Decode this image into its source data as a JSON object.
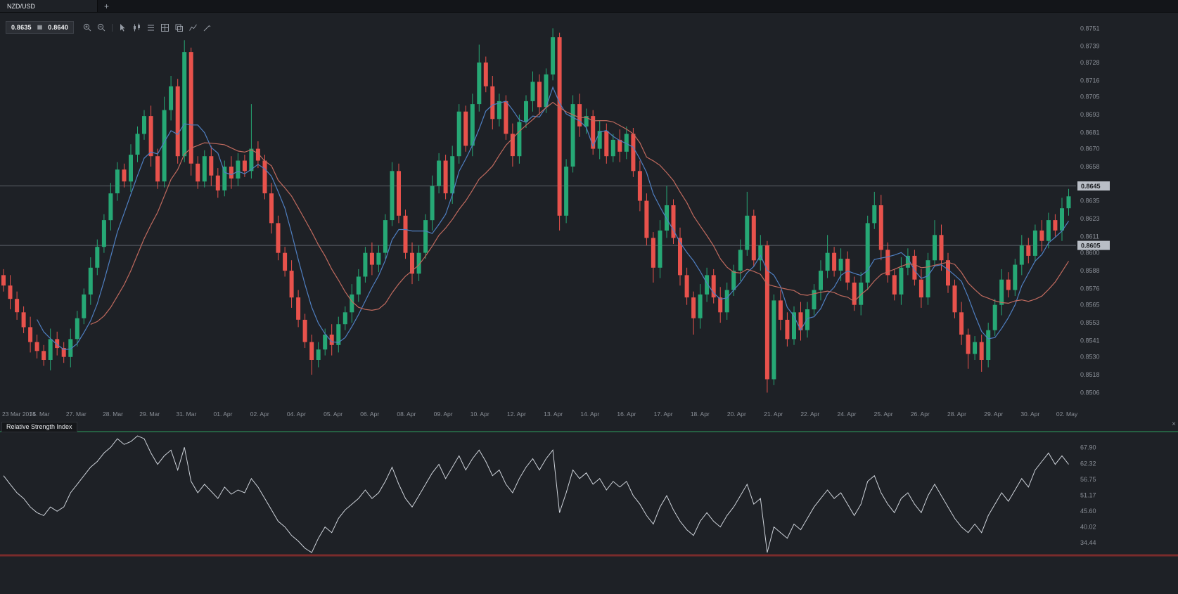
{
  "app": {
    "tabbar": {
      "active_tab": "NZD/USD",
      "new_tab": "+"
    },
    "toolbar": {
      "bid": "0.8635",
      "ask": "0.8640",
      "quote_separator_icon": "▦",
      "icons": [
        "zoom-in",
        "zoom-out",
        "cursor",
        "candlestick",
        "list",
        "grid",
        "copy",
        "line-chart",
        "pencil"
      ]
    }
  },
  "price_axis": {
    "labels": [
      "0.8751",
      "0.8739",
      "0.8728",
      "0.8716",
      "0.8705",
      "0.8693",
      "0.8681",
      "0.8670",
      "0.8658",
      "0.8635",
      "0.8623",
      "0.8611",
      "0.8600",
      "0.8588",
      "0.8576",
      "0.8565",
      "0.8553",
      "0.8541",
      "0.8530",
      "0.8518",
      "0.8506"
    ],
    "tags": [
      {
        "label": "0.8645",
        "value": 0.8645
      },
      {
        "label": "0.8605",
        "value": 0.8605
      }
    ]
  },
  "time_axis": {
    "labels": [
      "23 Mar 2014",
      "25. Mar",
      "27. Mar",
      "28. Mar",
      "29. Mar",
      "31. Mar",
      "01. Apr",
      "02. Apr",
      "04. Apr",
      "05. Apr",
      "06. Apr",
      "08. Apr",
      "09. Apr",
      "10. Apr",
      "12. Apr",
      "13. Apr",
      "14. Apr",
      "16. Apr",
      "17. Apr",
      "18. Apr",
      "20. Apr",
      "21. Apr",
      "22. Apr",
      "24. Apr",
      "25. Apr",
      "26. Apr",
      "28. Apr",
      "29. Apr",
      "30. Apr",
      "02. May"
    ]
  },
  "rsi_panel": {
    "title": "Relative Strength Index",
    "close": "×",
    "labels": [
      "67.90",
      "62.32",
      "56.75",
      "51.17",
      "45.60",
      "40.02",
      "34.44"
    ],
    "overbought_value": 73.5
  },
  "colors": {
    "background": "#1e2126",
    "up": "#26a875",
    "down": "#e8524c",
    "ma_fast": "#4f7fc1",
    "ma_slow": "#c06a5e",
    "rsi_line": "#ced3da",
    "overbought_line": "#2f9e5f",
    "bottom_line": "#7a2b2b",
    "level_line": "#5c6168",
    "tag_bg": "#b9bec6",
    "tag_text": "#1b1d21",
    "axis_text": "#8b9098"
  },
  "chart_data": {
    "type": "candlestick",
    "symbol": "NZD/USD",
    "price_range": [
      0.8493,
      0.8762
    ],
    "level_lines": [
      0.8645,
      0.8605
    ],
    "ma_fast_period": 6,
    "ma_slow_period": 14,
    "candles": [
      [
        0.8585,
        0.8589,
        0.8574,
        0.8578
      ],
      [
        0.8578,
        0.8585,
        0.8562,
        0.8569
      ],
      [
        0.8569,
        0.8574,
        0.8555,
        0.856
      ],
      [
        0.856,
        0.8564,
        0.8546,
        0.855
      ],
      [
        0.855,
        0.8557,
        0.8533,
        0.854
      ],
      [
        0.854,
        0.8545,
        0.8529,
        0.8534
      ],
      [
        0.8534,
        0.8538,
        0.8524,
        0.8528
      ],
      [
        0.8528,
        0.8549,
        0.8521,
        0.8542
      ],
      [
        0.8542,
        0.8547,
        0.8531,
        0.8536
      ],
      [
        0.8536,
        0.854,
        0.8526,
        0.853
      ],
      [
        0.853,
        0.8549,
        0.8523,
        0.8542
      ],
      [
        0.8542,
        0.8561,
        0.8537,
        0.8556
      ],
      [
        0.8556,
        0.8576,
        0.8552,
        0.8572
      ],
      [
        0.8572,
        0.8597,
        0.8565,
        0.859
      ],
      [
        0.859,
        0.8609,
        0.8585,
        0.8604
      ],
      [
        0.8604,
        0.8626,
        0.86,
        0.8622
      ],
      [
        0.8622,
        0.8647,
        0.8615,
        0.864
      ],
      [
        0.864,
        0.8661,
        0.8635,
        0.8656
      ],
      [
        0.8656,
        0.866,
        0.8644,
        0.8648
      ],
      [
        0.8648,
        0.8673,
        0.8641,
        0.8666
      ],
      [
        0.8666,
        0.8685,
        0.8661,
        0.868
      ],
      [
        0.868,
        0.8696,
        0.8676,
        0.8692
      ],
      [
        0.8692,
        0.8699,
        0.8658,
        0.8665
      ],
      [
        0.8665,
        0.867,
        0.8643,
        0.8648
      ],
      [
        0.8648,
        0.8705,
        0.8644,
        0.8696
      ],
      [
        0.8696,
        0.8719,
        0.8689,
        0.8712
      ],
      [
        0.8712,
        0.8717,
        0.866,
        0.8665
      ],
      [
        0.8665,
        0.8743,
        0.8661,
        0.8735
      ],
      [
        0.8735,
        0.8738,
        0.8652,
        0.866
      ],
      [
        0.866,
        0.8665,
        0.8643,
        0.8648
      ],
      [
        0.8648,
        0.8669,
        0.8644,
        0.8665
      ],
      [
        0.8665,
        0.8672,
        0.8645,
        0.8652
      ],
      [
        0.8652,
        0.8657,
        0.8637,
        0.8642
      ],
      [
        0.8642,
        0.8662,
        0.8638,
        0.8658
      ],
      [
        0.8658,
        0.8665,
        0.8643,
        0.865
      ],
      [
        0.865,
        0.8667,
        0.8645,
        0.8662
      ],
      [
        0.8662,
        0.8666,
        0.8651,
        0.8655
      ],
      [
        0.8655,
        0.87,
        0.865,
        0.867
      ],
      [
        0.867,
        0.8675,
        0.8657,
        0.8662
      ],
      [
        0.8662,
        0.8666,
        0.8636,
        0.864
      ],
      [
        0.864,
        0.8647,
        0.8613,
        0.862
      ],
      [
        0.862,
        0.8625,
        0.8595,
        0.86
      ],
      [
        0.86,
        0.8604,
        0.8584,
        0.8588
      ],
      [
        0.8588,
        0.8595,
        0.8563,
        0.857
      ],
      [
        0.857,
        0.8575,
        0.855,
        0.8555
      ],
      [
        0.8555,
        0.8559,
        0.8536,
        0.854
      ],
      [
        0.854,
        0.8545,
        0.8518,
        0.8528
      ],
      [
        0.8528,
        0.854,
        0.8523,
        0.8535
      ],
      [
        0.8535,
        0.8549,
        0.8531,
        0.8545
      ],
      [
        0.8545,
        0.8552,
        0.8531,
        0.8538
      ],
      [
        0.8538,
        0.8557,
        0.8533,
        0.8552
      ],
      [
        0.8552,
        0.8564,
        0.8548,
        0.856
      ],
      [
        0.856,
        0.8579,
        0.8553,
        0.8572
      ],
      [
        0.8572,
        0.8589,
        0.8567,
        0.8584
      ],
      [
        0.8584,
        0.8604,
        0.858,
        0.86
      ],
      [
        0.86,
        0.8607,
        0.8585,
        0.8592
      ],
      [
        0.8592,
        0.8605,
        0.8587,
        0.86
      ],
      [
        0.86,
        0.8626,
        0.8596,
        0.8622
      ],
      [
        0.8622,
        0.8661,
        0.8618,
        0.8655
      ],
      [
        0.8655,
        0.866,
        0.862,
        0.8625
      ],
      [
        0.8625,
        0.8629,
        0.8596,
        0.86
      ],
      [
        0.86,
        0.8607,
        0.8579,
        0.8586
      ],
      [
        0.8586,
        0.8605,
        0.8581,
        0.86
      ],
      [
        0.86,
        0.8626,
        0.8596,
        0.8622
      ],
      [
        0.8622,
        0.8652,
        0.8615,
        0.8645
      ],
      [
        0.8645,
        0.8667,
        0.864,
        0.8662
      ],
      [
        0.8662,
        0.8666,
        0.8636,
        0.864
      ],
      [
        0.864,
        0.8672,
        0.8633,
        0.8665
      ],
      [
        0.8665,
        0.87,
        0.866,
        0.8695
      ],
      [
        0.8695,
        0.8699,
        0.8668,
        0.8672
      ],
      [
        0.8672,
        0.8707,
        0.8665,
        0.87
      ],
      [
        0.87,
        0.874,
        0.8695,
        0.8728
      ],
      [
        0.8728,
        0.8732,
        0.8708,
        0.8712
      ],
      [
        0.8712,
        0.8719,
        0.8683,
        0.869
      ],
      [
        0.869,
        0.8707,
        0.8685,
        0.8702
      ],
      [
        0.8702,
        0.8706,
        0.8676,
        0.868
      ],
      [
        0.868,
        0.8687,
        0.8658,
        0.8665
      ],
      [
        0.8665,
        0.8693,
        0.866,
        0.8688
      ],
      [
        0.8688,
        0.8706,
        0.8684,
        0.8702
      ],
      [
        0.8702,
        0.8722,
        0.8695,
        0.8715
      ],
      [
        0.8715,
        0.872,
        0.8693,
        0.8698
      ],
      [
        0.8698,
        0.8724,
        0.8694,
        0.872
      ],
      [
        0.872,
        0.8751,
        0.8716,
        0.8745
      ],
      [
        0.8745,
        0.8748,
        0.8615,
        0.8625
      ],
      [
        0.8625,
        0.8663,
        0.862,
        0.8658
      ],
      [
        0.8658,
        0.8706,
        0.8654,
        0.87
      ],
      [
        0.87,
        0.8707,
        0.8678,
        0.8685
      ],
      [
        0.8685,
        0.8697,
        0.868,
        0.8692
      ],
      [
        0.8692,
        0.8696,
        0.8666,
        0.867
      ],
      [
        0.867,
        0.8689,
        0.8663,
        0.8682
      ],
      [
        0.8682,
        0.8687,
        0.866,
        0.8665
      ],
      [
        0.8665,
        0.868,
        0.8661,
        0.8676
      ],
      [
        0.8676,
        0.8683,
        0.8661,
        0.8668
      ],
      [
        0.8668,
        0.8685,
        0.8663,
        0.868
      ],
      [
        0.868,
        0.8684,
        0.8651,
        0.8655
      ],
      [
        0.8655,
        0.8662,
        0.8628,
        0.8635
      ],
      [
        0.8635,
        0.864,
        0.8605,
        0.861
      ],
      [
        0.861,
        0.8614,
        0.858,
        0.859
      ],
      [
        0.859,
        0.8622,
        0.8583,
        0.8615
      ],
      [
        0.8615,
        0.8645,
        0.861,
        0.8632
      ],
      [
        0.8632,
        0.8636,
        0.8606,
        0.861
      ],
      [
        0.861,
        0.8617,
        0.8578,
        0.8585
      ],
      [
        0.8585,
        0.859,
        0.8565,
        0.857
      ],
      [
        0.857,
        0.8574,
        0.8545,
        0.8556
      ],
      [
        0.8556,
        0.8579,
        0.8549,
        0.8572
      ],
      [
        0.8572,
        0.859,
        0.8567,
        0.8585
      ],
      [
        0.8585,
        0.8589,
        0.8566,
        0.857
      ],
      [
        0.857,
        0.8577,
        0.8553,
        0.856
      ],
      [
        0.856,
        0.858,
        0.8555,
        0.8575
      ],
      [
        0.8575,
        0.8592,
        0.8571,
        0.8588
      ],
      [
        0.8588,
        0.8609,
        0.8581,
        0.8602
      ],
      [
        0.8602,
        0.8641,
        0.8598,
        0.8625
      ],
      [
        0.8625,
        0.8629,
        0.8591,
        0.8595
      ],
      [
        0.8595,
        0.8612,
        0.8588,
        0.8605
      ],
      [
        0.8605,
        0.8608,
        0.8506,
        0.8515
      ],
      [
        0.8515,
        0.8572,
        0.8511,
        0.8568
      ],
      [
        0.8568,
        0.8575,
        0.8548,
        0.8555
      ],
      [
        0.8555,
        0.856,
        0.8537,
        0.8542
      ],
      [
        0.8542,
        0.8564,
        0.8538,
        0.856
      ],
      [
        0.856,
        0.8567,
        0.8541,
        0.8548
      ],
      [
        0.8548,
        0.8567,
        0.8543,
        0.8562
      ],
      [
        0.8562,
        0.8579,
        0.8558,
        0.8575
      ],
      [
        0.8575,
        0.8595,
        0.8568,
        0.8588
      ],
      [
        0.8588,
        0.8612,
        0.8583,
        0.86
      ],
      [
        0.86,
        0.8604,
        0.8584,
        0.8588
      ],
      [
        0.8588,
        0.8603,
        0.8581,
        0.8596
      ],
      [
        0.8596,
        0.8601,
        0.8575,
        0.858
      ],
      [
        0.858,
        0.8584,
        0.8561,
        0.8565
      ],
      [
        0.8565,
        0.8587,
        0.8558,
        0.858
      ],
      [
        0.858,
        0.8625,
        0.8575,
        0.862
      ],
      [
        0.862,
        0.8641,
        0.8616,
        0.8632
      ],
      [
        0.8632,
        0.8639,
        0.8595,
        0.8602
      ],
      [
        0.8602,
        0.8607,
        0.858,
        0.8585
      ],
      [
        0.8585,
        0.8589,
        0.8568,
        0.8572
      ],
      [
        0.8572,
        0.8597,
        0.8565,
        0.859
      ],
      [
        0.859,
        0.8603,
        0.8585,
        0.8598
      ],
      [
        0.8598,
        0.8602,
        0.8578,
        0.8582
      ],
      [
        0.8582,
        0.8589,
        0.8563,
        0.857
      ],
      [
        0.857,
        0.86,
        0.8565,
        0.8595
      ],
      [
        0.8595,
        0.8622,
        0.8591,
        0.8612
      ],
      [
        0.8612,
        0.8619,
        0.8588,
        0.8595
      ],
      [
        0.8595,
        0.86,
        0.8573,
        0.8578
      ],
      [
        0.8578,
        0.8582,
        0.8556,
        0.856
      ],
      [
        0.856,
        0.8567,
        0.8538,
        0.8545
      ],
      [
        0.8545,
        0.8549,
        0.8522,
        0.8532
      ],
      [
        0.8532,
        0.8544,
        0.8528,
        0.854
      ],
      [
        0.854,
        0.8545,
        0.852,
        0.8528
      ],
      [
        0.8528,
        0.8553,
        0.8523,
        0.8548
      ],
      [
        0.8548,
        0.8569,
        0.8544,
        0.8565
      ],
      [
        0.8565,
        0.8589,
        0.8558,
        0.8582
      ],
      [
        0.8582,
        0.8587,
        0.857,
        0.8575
      ],
      [
        0.8575,
        0.8596,
        0.8571,
        0.8592
      ],
      [
        0.8592,
        0.8612,
        0.8585,
        0.8605
      ],
      [
        0.8605,
        0.861,
        0.8593,
        0.8598
      ],
      [
        0.8598,
        0.8619,
        0.8594,
        0.8615
      ],
      [
        0.8615,
        0.8622,
        0.8601,
        0.8608
      ],
      [
        0.8608,
        0.8627,
        0.8603,
        0.8622
      ],
      [
        0.8622,
        0.8626,
        0.8611,
        0.8615
      ],
      [
        0.8615,
        0.8637,
        0.8608,
        0.863
      ],
      [
        0.863,
        0.8643,
        0.8625,
        0.8638
      ]
    ],
    "rsi": {
      "range": [
        30.5,
        74
      ],
      "values": [
        58,
        55,
        52,
        50,
        47,
        45,
        44,
        47,
        45.5,
        47,
        52,
        55,
        58,
        61,
        63,
        66,
        68,
        71,
        69,
        70,
        72,
        71,
        66,
        62,
        65,
        67,
        60,
        68,
        56,
        52,
        55,
        52.5,
        50,
        54,
        51.5,
        53,
        52,
        57,
        54,
        50,
        46,
        42,
        40,
        37,
        35,
        32.5,
        31,
        36,
        40,
        38,
        43,
        46,
        48,
        50,
        53,
        50,
        52,
        56,
        61,
        55,
        50,
        47,
        51,
        55,
        59,
        62,
        57,
        61,
        65,
        60,
        64,
        67,
        63,
        58,
        60,
        55,
        52,
        57,
        61,
        64,
        60,
        64,
        67,
        45,
        52,
        60,
        57,
        59,
        55,
        57,
        53,
        56,
        54,
        56,
        51,
        48,
        44,
        41,
        47,
        51,
        46,
        42,
        39,
        37,
        42,
        45,
        42,
        40,
        44,
        47,
        51,
        55,
        48,
        50,
        28,
        40,
        38,
        36,
        41,
        39,
        43,
        47,
        50,
        53,
        50,
        52,
        48,
        44,
        48,
        56,
        58,
        52,
        48,
        45,
        50,
        52,
        48,
        45,
        51,
        55,
        51,
        47,
        43,
        40,
        38,
        41,
        38,
        44,
        48,
        52,
        49,
        53,
        57,
        54,
        60,
        63,
        66,
        62,
        65,
        62
      ]
    }
  }
}
